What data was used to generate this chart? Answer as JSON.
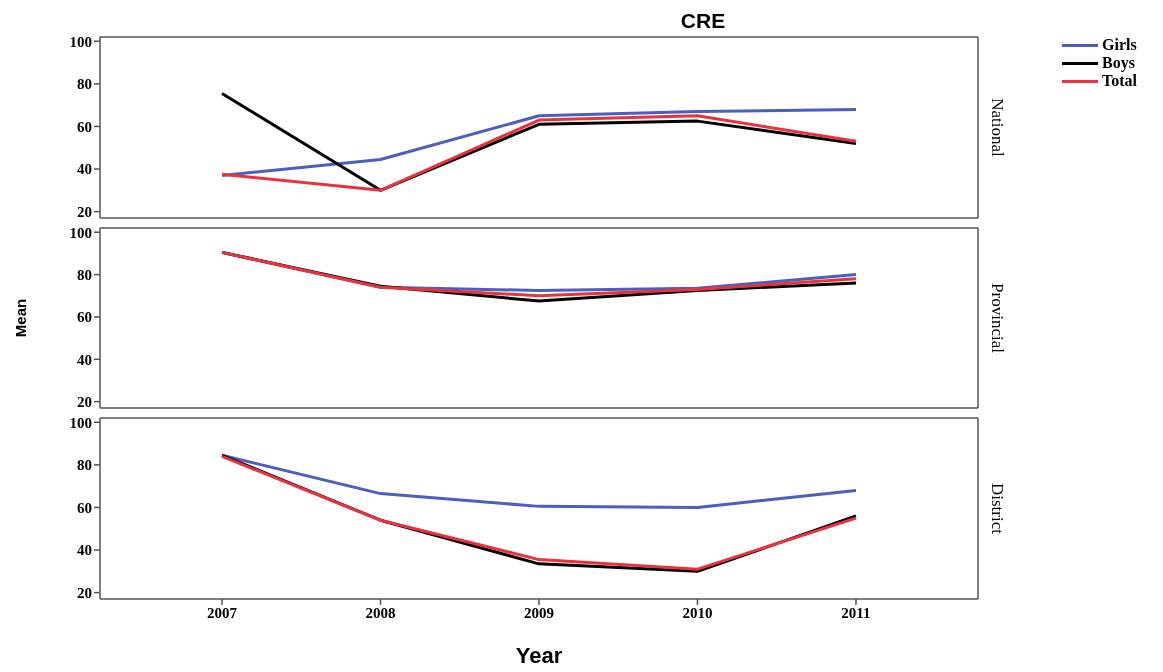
{
  "chart_data": [
    {
      "type": "line",
      "title": "CRE",
      "y2label": "National",
      "categories": [
        "2007",
        "2008",
        "2009",
        "2010",
        "2011"
      ],
      "ylim": [
        17,
        102
      ],
      "yticks": [
        20,
        40,
        60,
        80,
        100
      ],
      "tick_labels": "y",
      "legend": "top right",
      "series": [
        {
          "name": "Girls",
          "color": "#4a5fbf",
          "values": [
            37,
            44.5,
            65,
            67,
            68
          ]
        },
        {
          "name": "Boys",
          "color": "#000000",
          "values": [
            75.5,
            30,
            61,
            62.5,
            52
          ]
        },
        {
          "name": "Total",
          "color": "#e8333f",
          "values": [
            37.5,
            30,
            63,
            65,
            53
          ]
        }
      ]
    },
    {
      "type": "line",
      "ylabel": "Mean",
      "y2label": "Provincial",
      "categories": [
        "2007",
        "2008",
        "2009",
        "2010",
        "2011"
      ],
      "ylim": [
        17,
        102
      ],
      "yticks": [
        20,
        40,
        60,
        80,
        100
      ],
      "tick_labels": "y",
      "series": [
        {
          "color": "#4a5fbf",
          "values": [
            90.5,
            74,
            72.5,
            73.5,
            80
          ]
        },
        {
          "color": "#000000",
          "values": [
            90.5,
            74.5,
            67.5,
            72.5,
            76
          ]
        },
        {
          "color": "#e8333f",
          "values": [
            90.5,
            74,
            70,
            73,
            78
          ]
        }
      ]
    },
    {
      "type": "line",
      "xlabel": "Year",
      "y2label": "District",
      "categories": [
        "2007",
        "2008",
        "2009",
        "2010",
        "2011"
      ],
      "ylim": [
        17,
        102
      ],
      "yticks": [
        20,
        40,
        60,
        80,
        100
      ],
      "series": [
        {
          "color": "#4a5fbf",
          "values": [
            84.5,
            66.5,
            60.5,
            60,
            68
          ]
        },
        {
          "color": "#000000",
          "values": [
            84.5,
            54,
            33.5,
            30,
            56
          ]
        },
        {
          "color": "#e8333f",
          "values": [
            84,
            54,
            35.5,
            31,
            55
          ]
        }
      ]
    }
  ]
}
